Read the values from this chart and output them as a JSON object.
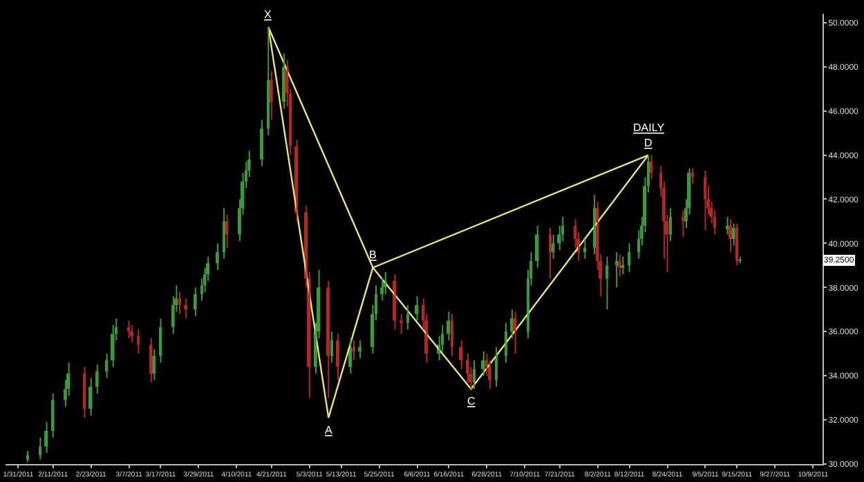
{
  "chart_data": {
    "type": "candlestick",
    "x": [
      "2011-02-03",
      "2011-02-07",
      "2011-02-09",
      "2011-02-11",
      "2011-02-15",
      "2011-02-16",
      "2011-02-21",
      "2011-02-23",
      "2011-02-25",
      "2011-02-28",
      "2011-03-02",
      "2011-03-03",
      "2011-03-07",
      "2011-03-08",
      "2011-03-10",
      "2011-03-14",
      "2011-03-15",
      "2011-03-17",
      "2011-03-21",
      "2011-03-22",
      "2011-03-23",
      "2011-03-25",
      "2011-03-28",
      "2011-03-30",
      "2011-03-31",
      "2011-04-01",
      "2011-04-04",
      "2011-04-06",
      "2011-04-07",
      "2011-04-11",
      "2011-04-12",
      "2011-04-13",
      "2011-04-14",
      "2011-04-18",
      "2011-04-20",
      "2011-04-21",
      "2011-04-25",
      "2011-04-26",
      "2011-04-27",
      "2011-04-29",
      "2011-05-02",
      "2011-05-03",
      "2011-05-05",
      "2011-05-06",
      "2011-05-09",
      "2011-05-10",
      "2011-05-12",
      "2011-05-16",
      "2011-05-17",
      "2011-05-19",
      "2011-05-23",
      "2011-05-24",
      "2011-05-26",
      "2011-05-27",
      "2011-05-30",
      "2011-06-01",
      "2011-06-03",
      "2011-06-06",
      "2011-06-08",
      "2011-06-09",
      "2011-06-13",
      "2011-06-14",
      "2011-06-16",
      "2011-06-17",
      "2011-06-20",
      "2011-06-22",
      "2011-06-23",
      "2011-06-24",
      "2011-06-27",
      "2011-06-28",
      "2011-06-29",
      "2011-07-01",
      "2011-07-04",
      "2011-07-06",
      "2011-07-07",
      "2011-07-11",
      "2011-07-12",
      "2011-07-14",
      "2011-07-18",
      "2011-07-19",
      "2011-07-21",
      "2011-07-22",
      "2011-07-26",
      "2011-07-27",
      "2011-07-29",
      "2011-08-01",
      "2011-08-02",
      "2011-08-03",
      "2011-08-05",
      "2011-08-08",
      "2011-08-09",
      "2011-08-10",
      "2011-08-12",
      "2011-08-15",
      "2011-08-16",
      "2011-08-17",
      "2011-08-18",
      "2011-08-19",
      "2011-08-22",
      "2011-08-23",
      "2011-08-24",
      "2011-08-25",
      "2011-08-29",
      "2011-08-30",
      "2011-08-31",
      "2011-09-01",
      "2011-09-05",
      "2011-09-06",
      "2011-09-07",
      "2011-09-08",
      "2011-09-12",
      "2011-09-13",
      "2011-09-14",
      "2011-09-15",
      "2011-09-16"
    ],
    "ohlc": [
      [
        30.2,
        30.6,
        30.1,
        30.4
      ],
      [
        30.4,
        31.2,
        30.2,
        30.8
      ],
      [
        30.8,
        31.9,
        30.5,
        31.5
      ],
      [
        31.5,
        33.2,
        31.2,
        32.9
      ],
      [
        32.9,
        33.8,
        32.6,
        33.4
      ],
      [
        33.4,
        34.6,
        33.1,
        34.1
      ],
      [
        34.1,
        34.4,
        32.1,
        32.5
      ],
      [
        32.5,
        33.9,
        32.2,
        33.5
      ],
      [
        33.5,
        34.5,
        33.2,
        34.2
      ],
      [
        34.2,
        35.0,
        33.9,
        34.7
      ],
      [
        34.7,
        36.3,
        34.4,
        35.9
      ],
      [
        35.9,
        36.6,
        35.6,
        36.2
      ],
      [
        36.2,
        36.5,
        35.7,
        36.0
      ],
      [
        36.0,
        36.3,
        35.5,
        35.8
      ],
      [
        35.8,
        36.1,
        35.0,
        35.4
      ],
      [
        35.4,
        35.7,
        33.7,
        34.1
      ],
      [
        34.1,
        35.2,
        33.8,
        34.9
      ],
      [
        34.9,
        36.6,
        34.6,
        36.2
      ],
      [
        36.2,
        37.6,
        35.9,
        37.2
      ],
      [
        37.2,
        38.1,
        36.9,
        37.5
      ],
      [
        37.5,
        37.8,
        36.8,
        37.2
      ],
      [
        37.2,
        37.5,
        36.6,
        37.0
      ],
      [
        37.0,
        38.0,
        36.7,
        37.7
      ],
      [
        37.7,
        38.4,
        37.4,
        38.1
      ],
      [
        38.1,
        38.9,
        37.8,
        38.6
      ],
      [
        38.6,
        39.4,
        38.3,
        39.1
      ],
      [
        39.1,
        40.0,
        38.8,
        39.6
      ],
      [
        39.6,
        41.6,
        39.3,
        41.0
      ],
      [
        41.0,
        41.3,
        39.8,
        40.4
      ],
      [
        40.4,
        42.0,
        40.1,
        41.6
      ],
      [
        41.6,
        43.2,
        41.3,
        42.8
      ],
      [
        42.8,
        43.7,
        42.5,
        43.3
      ],
      [
        43.3,
        44.2,
        43.0,
        43.8
      ],
      [
        43.8,
        45.6,
        43.5,
        45.2
      ],
      [
        45.2,
        49.8,
        44.9,
        47.4
      ],
      [
        47.4,
        47.8,
        45.6,
        46.4
      ],
      [
        46.4,
        48.6,
        46.1,
        48.0
      ],
      [
        48.0,
        48.3,
        46.2,
        46.8
      ],
      [
        46.8,
        47.0,
        44.0,
        44.4
      ],
      [
        44.4,
        44.7,
        41.0,
        41.4
      ],
      [
        41.4,
        41.7,
        38.0,
        38.4
      ],
      [
        38.4,
        38.7,
        33.0,
        34.4
      ],
      [
        34.4,
        36.4,
        34.1,
        36.0
      ],
      [
        36.0,
        38.8,
        35.7,
        38.0
      ],
      [
        38.0,
        38.3,
        33.0,
        34.9
      ],
      [
        34.9,
        36.0,
        34.6,
        35.6
      ],
      [
        35.6,
        35.9,
        33.8,
        34.4
      ],
      [
        34.4,
        35.7,
        34.1,
        35.3
      ],
      [
        35.3,
        35.6,
        34.7,
        35.1
      ],
      [
        35.1,
        35.6,
        34.8,
        35.3
      ],
      [
        35.3,
        37.2,
        35.0,
        36.8
      ],
      [
        36.8,
        38.1,
        36.5,
        37.7
      ],
      [
        37.7,
        38.4,
        37.4,
        38.0
      ],
      [
        38.0,
        38.7,
        37.7,
        38.3
      ],
      [
        38.3,
        38.6,
        36.1,
        36.5
      ],
      [
        36.5,
        36.8,
        35.9,
        36.4
      ],
      [
        36.4,
        37.2,
        36.1,
        36.8
      ],
      [
        36.8,
        37.6,
        36.5,
        37.2
      ],
      [
        37.2,
        37.5,
        36.1,
        36.5
      ],
      [
        36.5,
        36.8,
        34.6,
        35.0
      ],
      [
        35.0,
        35.8,
        34.7,
        35.4
      ],
      [
        35.4,
        36.3,
        35.1,
        35.9
      ],
      [
        35.9,
        36.9,
        35.6,
        36.5
      ],
      [
        36.5,
        36.8,
        34.9,
        35.3
      ],
      [
        35.3,
        35.6,
        34.3,
        34.7
      ],
      [
        34.7,
        35.0,
        33.7,
        34.1
      ],
      [
        34.1,
        34.4,
        33.4,
        33.7
      ],
      [
        33.7,
        34.7,
        33.4,
        34.3
      ],
      [
        34.3,
        35.1,
        34.0,
        34.7
      ],
      [
        34.7,
        35.0,
        34.0,
        34.4
      ],
      [
        34.4,
        34.7,
        33.4,
        33.8
      ],
      [
        33.8,
        35.3,
        33.5,
        34.9
      ],
      [
        34.9,
        36.4,
        34.6,
        36.0
      ],
      [
        36.0,
        37.0,
        35.7,
        36.6
      ],
      [
        36.6,
        36.9,
        35.0,
        36.0
      ],
      [
        36.0,
        38.8,
        35.7,
        38.4
      ],
      [
        38.4,
        39.6,
        38.1,
        39.2
      ],
      [
        39.2,
        40.8,
        38.9,
        40.4
      ],
      [
        40.4,
        40.7,
        38.4,
        39.6
      ],
      [
        39.6,
        40.4,
        39.3,
        40.0
      ],
      [
        40.0,
        40.8,
        39.7,
        40.4
      ],
      [
        40.4,
        41.2,
        40.1,
        40.8
      ],
      [
        40.8,
        41.1,
        39.8,
        40.2
      ],
      [
        40.2,
        40.5,
        39.2,
        39.6
      ],
      [
        39.6,
        40.2,
        39.3,
        39.8
      ],
      [
        39.8,
        42.2,
        39.5,
        41.6
      ],
      [
        41.6,
        41.9,
        38.8,
        39.2
      ],
      [
        39.2,
        39.5,
        37.6,
        38.4
      ],
      [
        38.4,
        39.4,
        37.0,
        39.0
      ],
      [
        39.0,
        39.6,
        38.0,
        39.2
      ],
      [
        39.2,
        39.5,
        38.5,
        38.9
      ],
      [
        38.9,
        39.4,
        38.6,
        39.0
      ],
      [
        39.0,
        40.0,
        38.7,
        39.6
      ],
      [
        39.6,
        40.6,
        39.3,
        40.2
      ],
      [
        40.2,
        41.2,
        39.9,
        40.8
      ],
      [
        40.8,
        43.0,
        40.5,
        42.6
      ],
      [
        42.6,
        44.0,
        42.3,
        43.7
      ],
      [
        43.7,
        44.0,
        42.9,
        43.2
      ],
      [
        43.2,
        43.5,
        42.1,
        42.5
      ],
      [
        42.5,
        42.8,
        39.3,
        41.0
      ],
      [
        41.0,
        41.3,
        38.7,
        40.4
      ],
      [
        40.4,
        41.6,
        40.1,
        41.2
      ],
      [
        41.2,
        41.5,
        40.3,
        41.0
      ],
      [
        41.0,
        42.0,
        40.7,
        41.6
      ],
      [
        41.6,
        43.4,
        41.3,
        43.2
      ],
      [
        43.2,
        43.4,
        42.7,
        43.0
      ],
      [
        43.0,
        43.3,
        40.6,
        42.0
      ],
      [
        42.0,
        42.6,
        41.3,
        41.6
      ],
      [
        41.6,
        41.9,
        40.9,
        41.2
      ],
      [
        41.2,
        41.5,
        40.4,
        40.7
      ],
      [
        40.7,
        41.2,
        40.4,
        40.8
      ],
      [
        40.8,
        41.1,
        39.6,
        40.2
      ],
      [
        40.2,
        40.9,
        39.9,
        40.7
      ],
      [
        40.7,
        40.9,
        39.0,
        39.2
      ],
      [
        39.2,
        39.4,
        39.1,
        39.25
      ]
    ],
    "series": [
      {
        "type": "line",
        "color": "#e8e870",
        "x": [
          "2011-04-20",
          "2011-05-09",
          "2011-05-23",
          "2011-06-23",
          "2011-08-18"
        ],
        "values": [
          49.8,
          32.1,
          38.9,
          33.4,
          44.0
        ]
      },
      {
        "type": "line",
        "color": "#e8e870",
        "x": [
          "2011-04-20",
          "2011-05-23",
          "2011-08-18"
        ],
        "values": [
          49.8,
          38.9,
          44.0
        ]
      }
    ],
    "annotations": [
      {
        "text": "X",
        "x": "2011-04-20",
        "y": 49.8
      },
      {
        "text": "A",
        "x": "2011-05-09",
        "y": 32.1
      },
      {
        "text": "B",
        "x": "2011-05-23",
        "y": 38.9
      },
      {
        "text": "C",
        "x": "2011-06-23",
        "y": 33.4
      },
      {
        "text": "D",
        "x": "2011-08-18",
        "y": 44.0
      },
      {
        "text": "DAILY",
        "x": "2011-08-18",
        "y": 44.0
      },
      {
        "text": "39.2500",
        "y": 39.25
      }
    ],
    "xlim": [
      "2011-01-27",
      "2011-10-12"
    ],
    "xticks": [
      {
        "value": "2011-01-31",
        "label": "1/31/2011"
      },
      {
        "value": "2011-02-11",
        "label": "2/11/2011"
      },
      {
        "value": "2011-02-23",
        "label": "2/23/2011"
      },
      {
        "value": "2011-03-07",
        "label": "3/7/2011"
      },
      {
        "value": "2011-03-17",
        "label": "3/17/2011"
      },
      {
        "value": "2011-03-29",
        "label": "3/29/2011"
      },
      {
        "value": "2011-04-10",
        "label": "4/10/2011"
      },
      {
        "value": "2011-04-21",
        "label": "4/21/2011"
      },
      {
        "value": "2011-05-03",
        "label": "5/3/2011"
      },
      {
        "value": "2011-05-13",
        "label": "5/13/2011"
      },
      {
        "value": "2011-05-25",
        "label": "5/25/2011"
      },
      {
        "value": "2011-06-06",
        "label": "6/6/2011"
      },
      {
        "value": "2011-06-16",
        "label": "6/16/2011"
      },
      {
        "value": "2011-06-28",
        "label": "6/28/2011"
      },
      {
        "value": "2011-07-10",
        "label": "7/10/2011"
      },
      {
        "value": "2011-07-21",
        "label": "7/21/2011"
      },
      {
        "value": "2011-08-02",
        "label": "8/2/2011"
      },
      {
        "value": "2011-08-12",
        "label": "8/12/2011"
      },
      {
        "value": "2011-08-24",
        "label": "8/24/2011"
      },
      {
        "value": "2011-09-05",
        "label": "9/5/2011"
      },
      {
        "value": "2011-09-15",
        "label": "9/15/2011"
      },
      {
        "value": "2011-09-27",
        "label": "9/27/2011"
      },
      {
        "value": "2011-10-09",
        "label": "10/9/2011"
      }
    ],
    "ylim": [
      30,
      50.4
    ],
    "yticks": [
      {
        "value": 30,
        "label": "30.0000"
      },
      {
        "value": 32,
        "label": "32.0000"
      },
      {
        "value": 34,
        "label": "34.0000"
      },
      {
        "value": 36,
        "label": "36.0000"
      },
      {
        "value": 38,
        "label": "38.0000"
      },
      {
        "value": 40,
        "label": "40.0000"
      },
      {
        "value": 42,
        "label": "42.0000"
      },
      {
        "value": 44,
        "label": "44.0000"
      },
      {
        "value": 46,
        "label": "46.0000"
      },
      {
        "value": 48,
        "label": "48.0000"
      },
      {
        "value": 50,
        "label": "50.0000"
      }
    ]
  }
}
